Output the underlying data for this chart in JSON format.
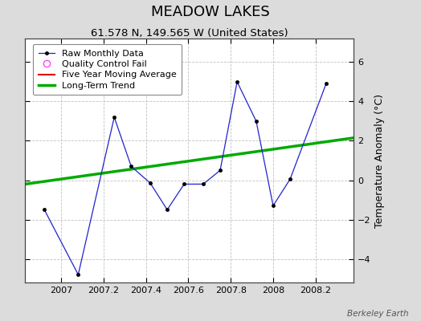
{
  "title": "MEADOW LAKES",
  "subtitle": "61.578 N, 149.565 W (United States)",
  "ylabel": "Temperature Anomaly (°C)",
  "watermark": "Berkeley Earth",
  "raw_x": [
    2006.92,
    2007.08,
    2007.25,
    2007.33,
    2007.42,
    2007.5,
    2007.58,
    2007.67,
    2007.75,
    2007.83,
    2007.92,
    2008.0,
    2008.08,
    2008.25
  ],
  "raw_y": [
    -1.5,
    -4.8,
    3.2,
    0.7,
    -0.15,
    -1.5,
    -0.2,
    -0.2,
    0.5,
    5.0,
    3.0,
    -1.3,
    0.05,
    4.9
  ],
  "trend_x": [
    2006.83,
    2008.38
  ],
  "trend_y": [
    -0.2,
    2.15
  ],
  "raw_line_color": "#2222cc",
  "raw_marker_color": "#000000",
  "five_year_color": "#dd0000",
  "trend_color": "#00aa00",
  "background_color": "#dcdcdc",
  "plot_bg_color": "#ffffff",
  "xlim": [
    2006.83,
    2008.38
  ],
  "ylim": [
    -5.2,
    7.2
  ],
  "yticks": [
    -4,
    -2,
    0,
    2,
    4,
    6
  ],
  "xticks": [
    2007.0,
    2007.2,
    2007.4,
    2007.6,
    2007.8,
    2008.0,
    2008.2
  ],
  "xtick_labels": [
    "2007",
    "2007.2",
    "2007.4",
    "2007.6",
    "2007.8",
    "2008",
    "2008.2"
  ],
  "legend_entries": [
    "Raw Monthly Data",
    "Quality Control Fail",
    "Five Year Moving Average",
    "Long-Term Trend"
  ],
  "title_fontsize": 13,
  "subtitle_fontsize": 9.5,
  "ylabel_fontsize": 9,
  "tick_fontsize": 8,
  "legend_fontsize": 8,
  "watermark_fontsize": 7.5
}
